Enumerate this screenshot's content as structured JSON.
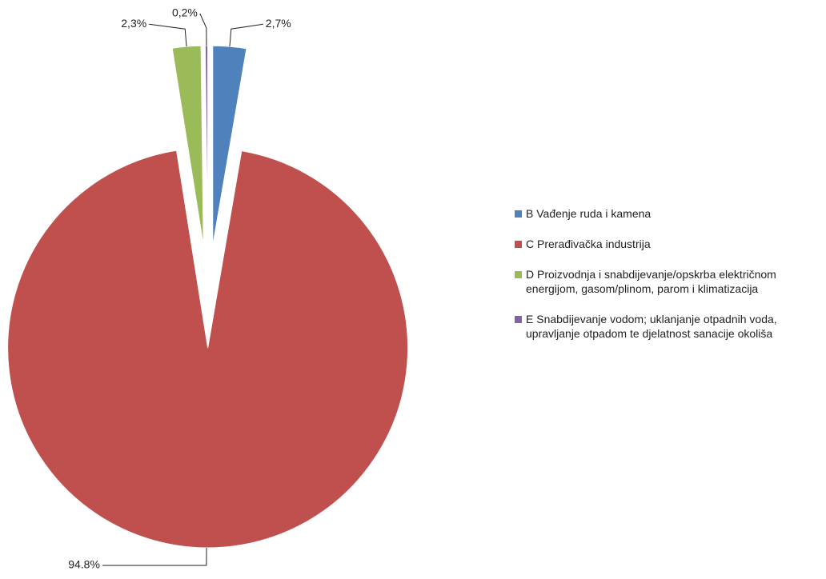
{
  "chart_data": {
    "type": "pie",
    "categories": [
      "B Vađenje ruda i kamena",
      "C Prerađivačka industrija",
      "D Proizvodnja i snabdijevanje/opskrba električnom energijom, gasom/plinom, parom i klimatizacija",
      "E Snabdijevanje vodom; uklanjanje otpadnih voda, upravljanje otpadom te djelatnost sanacije okoliša"
    ],
    "values": [
      2.7,
      94.8,
      2.3,
      0.2
    ],
    "value_labels": [
      "2,7%",
      "94.8%",
      "2,3%",
      "0,2%"
    ],
    "colors": [
      "#4f81bd",
      "#c0504d",
      "#9bbb59",
      "#8064a2"
    ],
    "legend": "right"
  }
}
